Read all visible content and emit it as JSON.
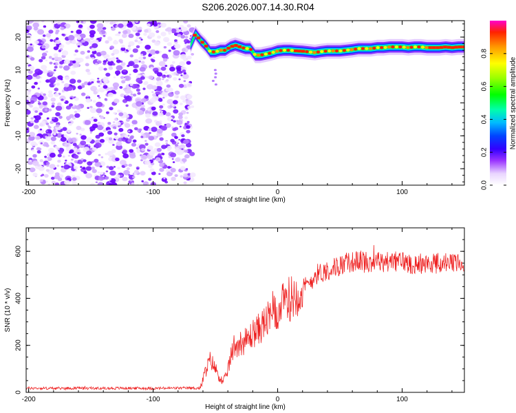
{
  "page": {
    "title": "S206.2026.007.14.30.R04"
  },
  "chart_data": [
    {
      "type": "heatmap",
      "name": "spectrogram",
      "xlabel": "Height of straight line (km)",
      "ylabel": "Frequency (Hz)",
      "xlim": [
        -202,
        150
      ],
      "ylim": [
        -25,
        25
      ],
      "xticks": [
        -200,
        -100,
        0,
        100
      ],
      "xtick_labels": [
        "-200",
        "-100",
        "0",
        "100"
      ],
      "yticks": [
        -20,
        -10,
        0,
        10,
        20
      ],
      "ytick_labels": [
        "-20",
        "-10",
        "0",
        "10",
        "20"
      ],
      "noise_region": {
        "x_start": -202,
        "x_end": -68
      },
      "carrier_line": {
        "x": [
          -70,
          -66,
          -62,
          -58,
          -54,
          -50,
          -46,
          -42,
          -38,
          -34,
          -30,
          -26,
          -22,
          -18,
          -14,
          -10,
          -5,
          0,
          5,
          10,
          15,
          20,
          25,
          30,
          35,
          40,
          45,
          50,
          55,
          60,
          65,
          70,
          75,
          80,
          85,
          90,
          95,
          100,
          105,
          110,
          115,
          120,
          125,
          130,
          135,
          140,
          145,
          150
        ],
        "y": [
          17.5,
          21,
          19,
          17.5,
          15.5,
          15.5,
          16,
          16,
          17,
          17.5,
          17,
          16.5,
          16.5,
          14.5,
          14.5,
          14.8,
          15.2,
          15.8,
          16,
          16,
          15.8,
          15.7,
          15.5,
          15.3,
          15.6,
          15.8,
          15.8,
          15.8,
          16,
          16.2,
          16.5,
          16.5,
          16.5,
          16.8,
          16.8,
          17,
          17,
          17,
          16.8,
          17,
          17,
          16.8,
          16.8,
          16.8,
          17,
          16.8,
          17,
          17
        ]
      },
      "colorbar": {
        "label": "Normalized spectral amplitude",
        "range": [
          0,
          1
        ],
        "ticks": [
          0.0,
          0.2,
          0.4,
          0.6,
          0.8
        ],
        "tick_labels": [
          "0.0",
          "0.2",
          "0.4",
          "0.6",
          "0.8"
        ]
      }
    },
    {
      "type": "line",
      "name": "snr",
      "xlabel": "Height of straight line (km)",
      "ylabel": "SNR (10 * v/v)",
      "xlim": [
        -202,
        150
      ],
      "ylim": [
        0,
        700
      ],
      "xticks": [
        -200,
        -100,
        0,
        100
      ],
      "xtick_labels": [
        "-200",
        "-100",
        "0",
        "100"
      ],
      "yticks": [
        0,
        200,
        400,
        600
      ],
      "ytick_labels": [
        "0",
        "200",
        "400",
        "600"
      ],
      "series": [
        {
          "name": "SNR",
          "color": "#ee2222",
          "x": [
            -202,
            -180,
            -160,
            -140,
            -120,
            -100,
            -80,
            -62,
            -58,
            -54,
            -50,
            -46,
            -44,
            -42,
            -38,
            -35,
            -30,
            -25,
            -20,
            -15,
            -10,
            -5,
            0,
            5,
            10,
            15,
            20,
            25,
            30,
            35,
            40,
            45,
            50,
            55,
            60,
            65,
            70,
            75,
            80,
            85,
            90,
            95,
            100,
            105,
            110,
            115,
            120,
            125,
            130,
            135,
            140,
            145,
            150
          ],
          "y": [
            18,
            17,
            18,
            17,
            18,
            17,
            18,
            18,
            90,
            140,
            100,
            60,
            40,
            60,
            140,
            200,
            210,
            220,
            250,
            270,
            300,
            320,
            340,
            380,
            400,
            420,
            440,
            460,
            500,
            510,
            520,
            530,
            540,
            550,
            555,
            560,
            560,
            555,
            560,
            550,
            560,
            555,
            560,
            550,
            545,
            550,
            545,
            550,
            548,
            552,
            545,
            550,
            548
          ]
        }
      ]
    }
  ]
}
